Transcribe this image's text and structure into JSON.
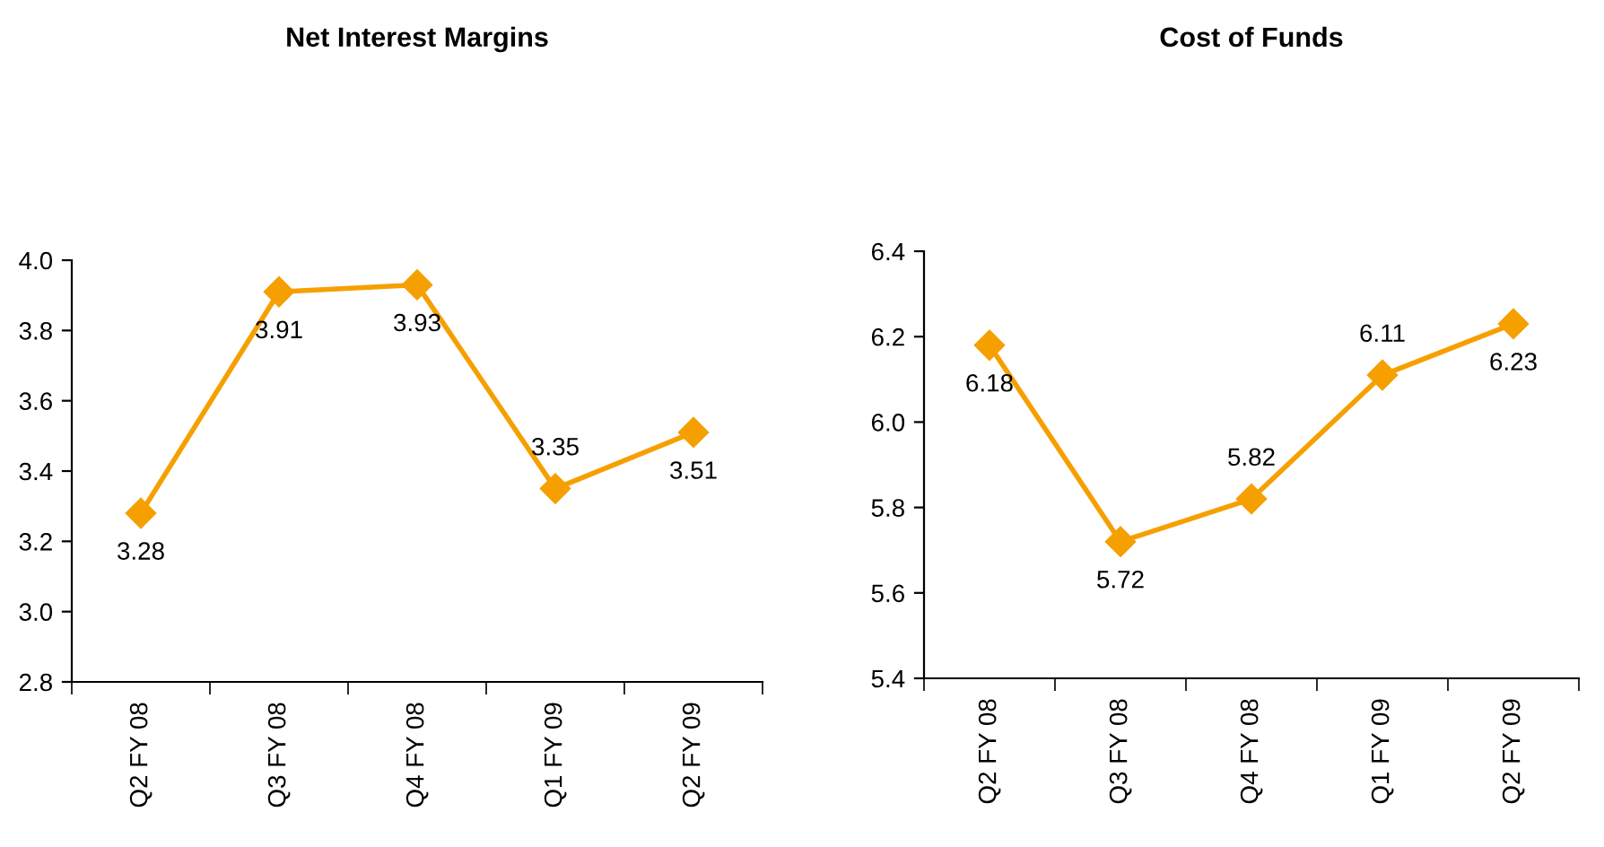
{
  "chart_data": [
    {
      "type": "line",
      "title": "Net Interest Margins",
      "categories": [
        "Q2 FY 08",
        "Q3 FY 08",
        "Q4 FY 08",
        "Q1 FY 09",
        "Q2 FY 09"
      ],
      "series": [
        {
          "color": "#f5a000",
          "values": [
            3.28,
            3.91,
            3.93,
            3.35,
            3.51
          ]
        }
      ],
      "ylim": [
        2.8,
        4.0
      ],
      "yticks": [
        {
          "value": 2.8,
          "label": "2.8"
        },
        {
          "value": 3.0,
          "label": "3.0"
        },
        {
          "value": 3.2,
          "label": "3.2"
        },
        {
          "value": 3.4,
          "label": "3.4"
        },
        {
          "value": 3.6,
          "label": "3.6"
        },
        {
          "value": 3.8,
          "label": "3.8"
        },
        {
          "value": 4.0,
          "label": "4.0"
        }
      ],
      "marker": "diamond",
      "line_style": "solid",
      "data_labels": true,
      "grid": false,
      "legend": false
    },
    {
      "type": "line",
      "title": "Cost of Funds",
      "categories": [
        "Q2 FY 08",
        "Q3 FY 08",
        "Q4 FY 08",
        "Q1 FY 09",
        "Q2 FY 09"
      ],
      "series": [
        {
          "color": "#f5a000",
          "values": [
            6.18,
            5.72,
            5.82,
            6.11,
            6.23
          ]
        }
      ],
      "ylim": [
        5.4,
        6.4
      ],
      "yticks": [
        {
          "value": 5.4,
          "label": "5.4"
        },
        {
          "value": 5.6,
          "label": "5.6"
        },
        {
          "value": 5.8,
          "label": "5.8"
        },
        {
          "value": 6.0,
          "label": "6.0"
        },
        {
          "value": 6.2,
          "label": "6.2"
        },
        {
          "value": 6.4,
          "label": "6.4"
        }
      ],
      "marker": "diamond",
      "line_style": "solid",
      "data_labels": true,
      "grid": false,
      "legend": false
    }
  ]
}
